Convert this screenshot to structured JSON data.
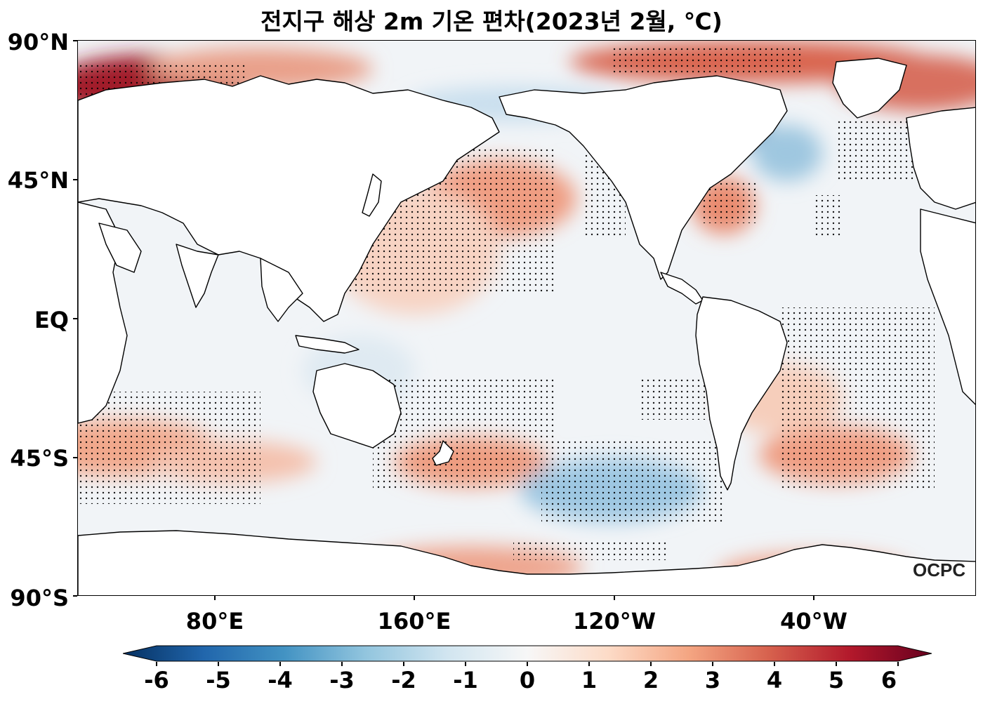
{
  "title": "전지구 해상 2m 기온 편차(2023년 2월, ℃)",
  "watermark": "OCPC",
  "map": {
    "y_axis_labels": [
      "90°N",
      "45°N",
      "EQ",
      "45°S",
      "90°S"
    ],
    "x_axis_labels": [
      "80°E",
      "160°E",
      "120°W",
      "40°W"
    ],
    "stipple_meaning_visible": false
  },
  "colorbar": {
    "ticks": [
      "-6",
      "-5",
      "-4",
      "-3",
      "-2",
      "-1",
      "0",
      "1",
      "2",
      "3",
      "4",
      "5",
      "6"
    ],
    "range": [
      -6,
      6
    ],
    "colormap": [
      "#053061",
      "#2166ac",
      "#4393c3",
      "#92c5de",
      "#d1e5f0",
      "#f7f7f7",
      "#fddbc7",
      "#f4a582",
      "#d6604d",
      "#b2182b",
      "#67001f"
    ],
    "extend": "both"
  }
}
